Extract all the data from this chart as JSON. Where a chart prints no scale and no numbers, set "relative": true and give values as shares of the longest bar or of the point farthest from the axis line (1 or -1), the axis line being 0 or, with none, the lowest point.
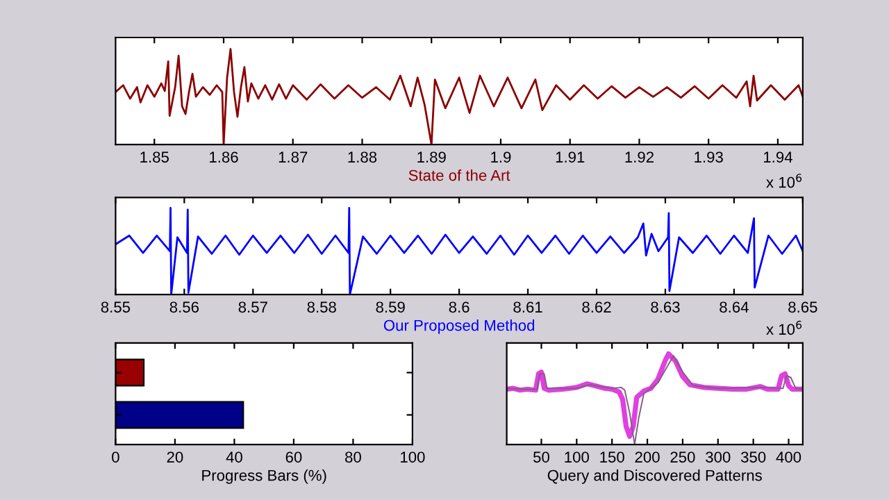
{
  "chart_data": [
    {
      "type": "line",
      "relative": true,
      "xlabel": "State of the Art",
      "annotations": [
        "x 10$^{6}$"
      ],
      "xlim": [
        1.8444,
        1.9436
      ],
      "xticks": [
        1.85,
        1.86,
        1.87,
        1.88,
        1.89,
        1.9,
        1.91,
        1.92,
        1.93,
        1.94
      ],
      "tick_labels": "x",
      "grid": false,
      "series": [
        {
          "color": "#8b0000",
          "x": [
            1.8444,
            1.8455,
            1.8465,
            1.8475,
            1.848,
            1.849,
            1.85,
            1.851,
            1.8515,
            1.852,
            1.8522,
            1.853,
            1.8535,
            1.854,
            1.8545,
            1.855,
            1.8555,
            1.856,
            1.857,
            1.858,
            1.859,
            1.8598,
            1.86,
            1.8605,
            1.861,
            1.8615,
            1.862,
            1.8625,
            1.863,
            1.8635,
            1.864,
            1.865,
            1.866,
            1.867,
            1.868,
            1.869,
            1.87,
            1.872,
            1.874,
            1.876,
            1.878,
            1.88,
            1.882,
            1.884,
            1.8855,
            1.887,
            1.888,
            1.889,
            1.89,
            1.8905,
            1.892,
            1.894,
            1.8955,
            1.897,
            1.899,
            1.901,
            1.903,
            1.905,
            1.906,
            1.908,
            1.91,
            1.912,
            1.914,
            1.916,
            1.918,
            1.92,
            1.922,
            1.924,
            1.926,
            1.928,
            1.93,
            1.932,
            1.934,
            1.9355,
            1.936,
            1.9365,
            1.937,
            1.939,
            1.941,
            1.943,
            1.9436
          ],
          "values": [
            0.55,
            0.62,
            0.48,
            0.6,
            0.44,
            0.62,
            0.5,
            0.64,
            0.56,
            0.87,
            0.3,
            0.6,
            0.93,
            0.4,
            0.32,
            0.55,
            0.74,
            0.5,
            0.6,
            0.52,
            0.62,
            0.55,
            0.0,
            0.7,
            1.0,
            0.55,
            0.29,
            0.6,
            0.81,
            0.45,
            0.64,
            0.48,
            0.62,
            0.47,
            0.63,
            0.48,
            0.62,
            0.47,
            0.63,
            0.48,
            0.62,
            0.49,
            0.6,
            0.47,
            0.72,
            0.4,
            0.7,
            0.42,
            0.0,
            0.68,
            0.38,
            0.7,
            0.33,
            0.72,
            0.4,
            0.7,
            0.38,
            0.68,
            0.36,
            0.62,
            0.47,
            0.62,
            0.48,
            0.61,
            0.49,
            0.6,
            0.5,
            0.6,
            0.49,
            0.61,
            0.48,
            0.62,
            0.49,
            0.66,
            0.4,
            0.72,
            0.46,
            0.62,
            0.47,
            0.62,
            0.5
          ]
        }
      ]
    },
    {
      "type": "line",
      "relative": true,
      "xlabel": "Our Proposed Method",
      "annotations": [
        "x 10$^{6}$"
      ],
      "xlim": [
        8.55,
        8.65
      ],
      "xticks": [
        8.55,
        8.56,
        8.57,
        8.58,
        8.59,
        8.6,
        8.61,
        8.62,
        8.63,
        8.64,
        8.65
      ],
      "tick_labels": "x",
      "grid": false,
      "series": [
        {
          "color": "#0000ff",
          "x": [
            8.55,
            8.552,
            8.554,
            8.556,
            8.5579,
            8.558,
            8.5581,
            8.559,
            8.5604,
            8.5605,
            8.5606,
            8.562,
            8.564,
            8.566,
            8.568,
            8.57,
            8.572,
            8.574,
            8.576,
            8.578,
            8.58,
            8.582,
            8.5839,
            8.584,
            8.5841,
            8.586,
            8.588,
            8.59,
            8.592,
            8.594,
            8.596,
            8.598,
            8.6,
            8.602,
            8.604,
            8.606,
            8.608,
            8.61,
            8.612,
            8.614,
            8.616,
            8.618,
            8.62,
            8.622,
            8.624,
            8.626,
            8.6268,
            8.6272,
            8.628,
            8.629,
            8.6304,
            8.6305,
            8.6306,
            8.632,
            8.634,
            8.636,
            8.638,
            8.64,
            8.642,
            8.6429,
            8.643,
            8.645,
            8.647,
            8.649,
            8.65
          ],
          "values": [
            0.58,
            0.68,
            0.48,
            0.68,
            0.5,
            1.0,
            0.0,
            0.66,
            0.48,
            0.98,
            0.02,
            0.67,
            0.47,
            0.68,
            0.46,
            0.68,
            0.48,
            0.68,
            0.48,
            0.69,
            0.47,
            0.68,
            0.48,
            1.0,
            0.0,
            0.67,
            0.47,
            0.68,
            0.48,
            0.68,
            0.47,
            0.69,
            0.48,
            0.67,
            0.47,
            0.68,
            0.46,
            0.68,
            0.48,
            0.68,
            0.47,
            0.68,
            0.48,
            0.67,
            0.48,
            0.66,
            0.82,
            0.45,
            0.7,
            0.5,
            0.66,
            0.94,
            0.04,
            0.66,
            0.48,
            0.68,
            0.47,
            0.68,
            0.48,
            0.88,
            0.08,
            0.68,
            0.47,
            0.68,
            0.5
          ]
        }
      ]
    },
    {
      "type": "bar",
      "orientation": "horizontal",
      "xlabel": "Progress Bars (%)",
      "categories": [
        null,
        null
      ],
      "values": [
        9.5,
        43
      ],
      "colors": [
        "#990000",
        "#000088"
      ],
      "xlim": [
        0,
        100
      ],
      "xticks": [
        0,
        20,
        40,
        60,
        80,
        100
      ],
      "tick_labels": "x",
      "grid": false
    },
    {
      "type": "line",
      "relative": true,
      "xlabel": "Query and Discovered Patterns",
      "xlim": [
        1,
        420
      ],
      "xticks": [
        50,
        100,
        150,
        200,
        250,
        300,
        350,
        400
      ],
      "tick_labels": "x",
      "grid": false,
      "series": [
        {
          "color": "#e040e0",
          "x": [
            1,
            10,
            20,
            30,
            42,
            46,
            50,
            54,
            60,
            80,
            100,
            115,
            125,
            140,
            150,
            160,
            165,
            170,
            175,
            180,
            185,
            195,
            205,
            215,
            225,
            230,
            240,
            250,
            260,
            280,
            300,
            320,
            340,
            360,
            370,
            385,
            390,
            395,
            400,
            405,
            420
          ],
          "values": [
            0.61,
            0.62,
            0.6,
            0.61,
            0.6,
            0.78,
            0.8,
            0.62,
            0.6,
            0.61,
            0.63,
            0.67,
            0.65,
            0.62,
            0.61,
            0.58,
            0.5,
            0.2,
            0.09,
            0.2,
            0.52,
            0.59,
            0.62,
            0.72,
            0.92,
            1.0,
            0.92,
            0.75,
            0.66,
            0.63,
            0.62,
            0.61,
            0.61,
            0.64,
            0.61,
            0.61,
            0.76,
            0.78,
            0.65,
            0.61,
            0.61
          ]
        },
        {
          "color": "#806080",
          "x": [
            1,
            20,
            44,
            48,
            54,
            58,
            100,
            118,
            150,
            163,
            168,
            175,
            182,
            188,
            195,
            215,
            237,
            250,
            265,
            300,
            360,
            392,
            397,
            403,
            410,
            420
          ],
          "values": [
            0.62,
            0.61,
            0.61,
            0.78,
            0.78,
            0.62,
            0.62,
            0.66,
            0.62,
            0.63,
            0.6,
            0.35,
            0.0,
            0.3,
            0.56,
            0.68,
            0.98,
            0.8,
            0.65,
            0.62,
            0.63,
            0.62,
            0.76,
            0.74,
            0.62,
            0.61
          ]
        }
      ]
    }
  ]
}
